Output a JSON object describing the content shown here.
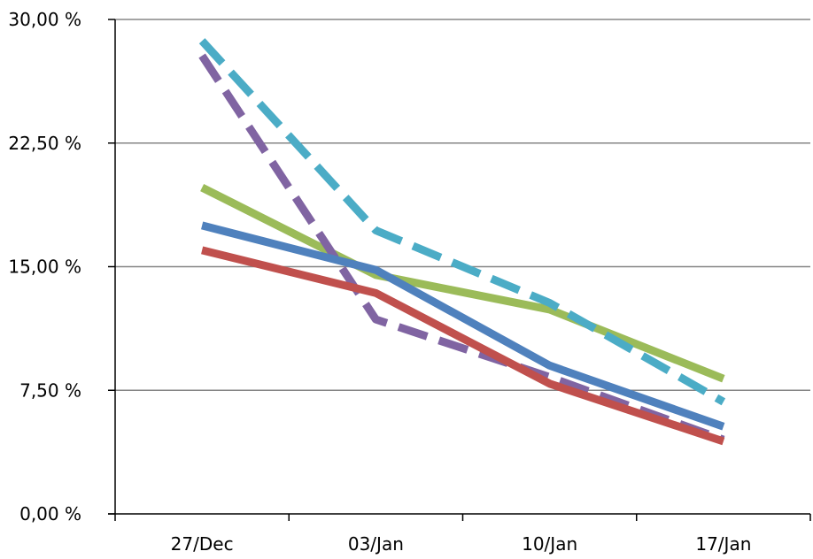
{
  "chart_data": {
    "type": "line",
    "categories": [
      "27/Dec",
      "03/Jan",
      "10/Jan",
      "17/Jan"
    ],
    "y_tick_labels": [
      "0,00 %",
      "7,50 %",
      "15,00 %",
      "22,50 %",
      "30,00 %"
    ],
    "y_ticks": [
      0,
      7.5,
      15,
      22.5,
      30
    ],
    "ylim": [
      0,
      30
    ],
    "grid": true,
    "legend": "none",
    "series": [
      {
        "values": [
          19.8,
          14.5,
          12.4,
          8.2
        ],
        "color": "#9BBB59",
        "dashed": false
      },
      {
        "values": [
          28.7,
          17.2,
          12.8,
          6.8
        ],
        "color": "#4BACC6",
        "dashed": true
      },
      {
        "values": [
          27.8,
          11.8,
          8.3,
          4.5
        ],
        "color": "#8064A2",
        "dashed": true
      },
      {
        "values": [
          17.5,
          14.8,
          9.0,
          5.3
        ],
        "color": "#4F81BD",
        "dashed": false
      },
      {
        "values": [
          16.0,
          13.4,
          7.9,
          4.4
        ],
        "color": "#C0504D",
        "dashed": false
      }
    ]
  }
}
